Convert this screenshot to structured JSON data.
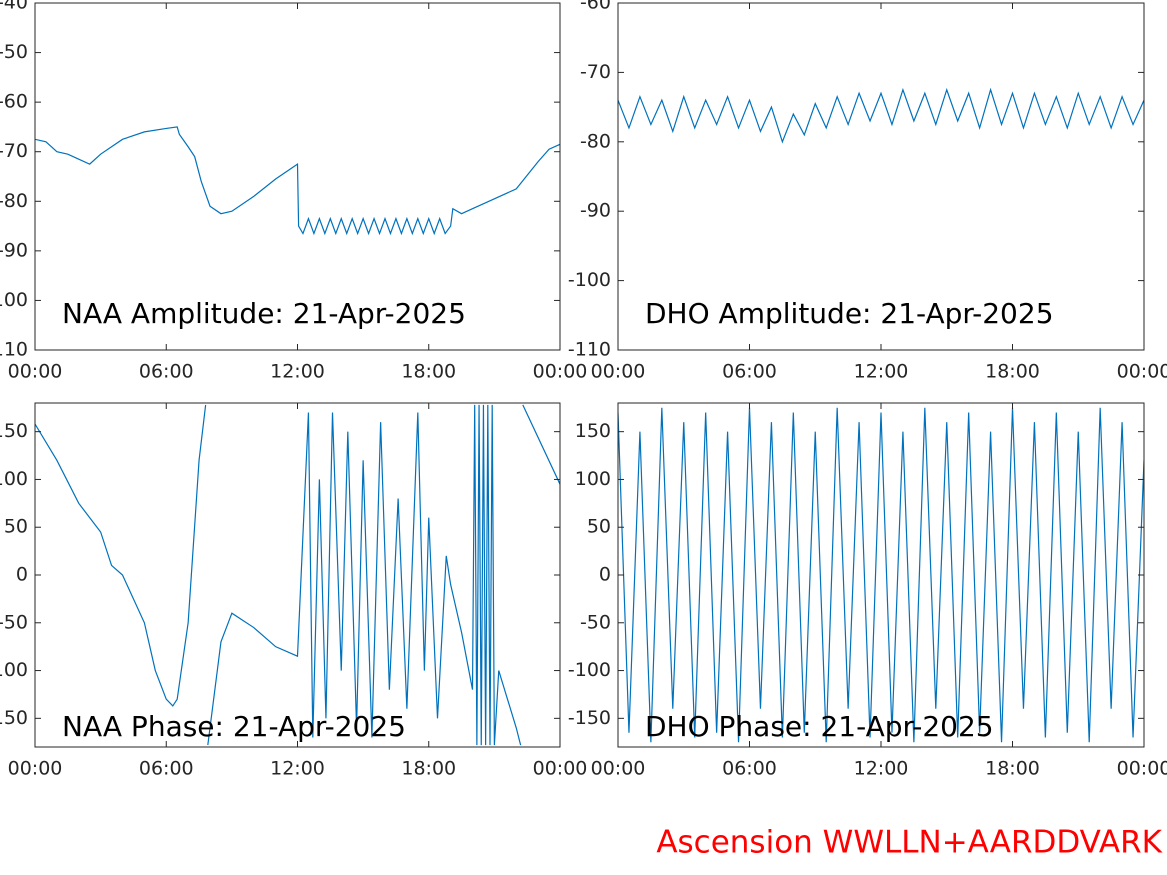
{
  "chart_data": [
    {
      "type": "line",
      "title": "NAA Amplitude: 21-Apr-2025",
      "xlim": [
        0,
        24
      ],
      "xticks": [
        {
          "value": 0,
          "label": "00:00"
        },
        {
          "value": 6,
          "label": "06:00"
        },
        {
          "value": 12,
          "label": "12:00"
        },
        {
          "value": 18,
          "label": "18:00"
        },
        {
          "value": 24,
          "label": "00:00"
        }
      ],
      "ylim": [
        -110,
        -40
      ],
      "yticks": [
        -110,
        -100,
        -90,
        -80,
        -70,
        -60,
        -50,
        -40
      ],
      "x": [
        0,
        0.5,
        1,
        1.5,
        2,
        2.5,
        3,
        3.5,
        4,
        5,
        6,
        6.5,
        6.6,
        7,
        7.3,
        7.6,
        8,
        8.5,
        9,
        10,
        11,
        12,
        12.05,
        12.25,
        12.5,
        12.75,
        13,
        13.25,
        13.5,
        13.75,
        14,
        14.25,
        14.5,
        14.75,
        15,
        15.25,
        15.5,
        15.75,
        16,
        16.25,
        16.5,
        16.75,
        17,
        17.25,
        17.5,
        17.75,
        18,
        18.25,
        18.5,
        18.75,
        19,
        19.1,
        19.5,
        20,
        21,
        22,
        23,
        23.5,
        24
      ],
      "series": [
        {
          "color": "#0072bd",
          "values": [
            -67.5,
            -68,
            -70,
            -70.5,
            -71.5,
            -72.5,
            -70.5,
            -69,
            -67.5,
            -66,
            -65.3,
            -65,
            -66.5,
            -69,
            -71,
            -76,
            -81,
            -82.5,
            -82,
            -79,
            -75.5,
            -72.5,
            -85,
            -86.5,
            -83.5,
            -86.5,
            -83.5,
            -86.5,
            -83.5,
            -86.5,
            -83.5,
            -86.5,
            -83.5,
            -86.5,
            -83.5,
            -86.5,
            -83.5,
            -86.5,
            -83.5,
            -86.5,
            -83.5,
            -86.5,
            -83.5,
            -86.5,
            -83.5,
            -86.5,
            -83.5,
            -86.5,
            -83.5,
            -86.5,
            -85,
            -81.5,
            -82.5,
            -81.5,
            -79.5,
            -77.5,
            -72,
            -69.5,
            -68.5
          ]
        }
      ]
    },
    {
      "type": "line",
      "title": "DHO Amplitude: 21-Apr-2025",
      "xlim": [
        0,
        24
      ],
      "xticks": [
        {
          "value": 0,
          "label": "00:00"
        },
        {
          "value": 6,
          "label": "06:00"
        },
        {
          "value": 12,
          "label": "12:00"
        },
        {
          "value": 18,
          "label": "18:00"
        },
        {
          "value": 24,
          "label": "00:00"
        }
      ],
      "ylim": [
        -110,
        -60
      ],
      "yticks": [
        -110,
        -100,
        -90,
        -80,
        -70,
        -60
      ],
      "x": [
        0,
        0.5,
        1,
        1.5,
        2,
        2.5,
        3,
        3.5,
        4,
        4.5,
        5,
        5.5,
        6,
        6.5,
        7,
        7.5,
        8,
        8.5,
        9,
        9.5,
        10,
        10.5,
        11,
        11.5,
        12,
        12.5,
        13,
        13.5,
        14,
        14.5,
        15,
        15.5,
        16,
        16.5,
        17,
        17.5,
        18,
        18.5,
        19,
        19.5,
        20,
        20.5,
        21,
        21.5,
        22,
        22.5,
        23,
        23.5,
        24
      ],
      "series": [
        {
          "color": "#0072bd",
          "values": [
            -74,
            -78,
            -73.5,
            -77.5,
            -74,
            -78.5,
            -73.5,
            -78,
            -74,
            -77.5,
            -73.5,
            -78,
            -74,
            -78.5,
            -75,
            -80,
            -76,
            -79,
            -74.5,
            -78,
            -73.5,
            -77.5,
            -73,
            -77,
            -73,
            -77.5,
            -72.5,
            -77,
            -73,
            -77.5,
            -72.5,
            -77,
            -73,
            -78,
            -72.5,
            -77.5,
            -73,
            -78,
            -73,
            -77.5,
            -73.5,
            -78,
            -73,
            -77.5,
            -73.5,
            -78,
            -73.5,
            -77.5,
            -74
          ]
        }
      ]
    },
    {
      "type": "line",
      "title": "NAA Phase: 21-Apr-2025",
      "xlim": [
        0,
        24
      ],
      "xticks": [
        {
          "value": 0,
          "label": "00:00"
        },
        {
          "value": 6,
          "label": "06:00"
        },
        {
          "value": 12,
          "label": "12:00"
        },
        {
          "value": 18,
          "label": "18:00"
        },
        {
          "value": 24,
          "label": "00:00"
        }
      ],
      "ylim": [
        -180,
        180
      ],
      "yticks": [
        -150,
        -100,
        -50,
        0,
        50,
        100,
        150
      ],
      "x": [
        0,
        1,
        2,
        3,
        3.5,
        4,
        5,
        5.5,
        6,
        6.3,
        6.5,
        7,
        7.5,
        7.8,
        7.85,
        7.9,
        8.5,
        9,
        10,
        11,
        12,
        12.5,
        12.7,
        13,
        13.3,
        13.6,
        14,
        14.3,
        14.7,
        15,
        15.4,
        15.8,
        16.2,
        16.6,
        17,
        17.5,
        17.8,
        18,
        18.4,
        18.8,
        19,
        19.5,
        20,
        20.1,
        20.2,
        20.3,
        20.4,
        20.5,
        20.6,
        20.7,
        20.8,
        20.9,
        21,
        21.2,
        22,
        22.2,
        22.25,
        22.3,
        24
      ],
      "series": [
        {
          "color": "#0072bd",
          "values": [
            158,
            120,
            75,
            45,
            10,
            0,
            -50,
            -100,
            -130,
            -137,
            -130,
            -50,
            120,
            178,
            null,
            -178,
            -70,
            -40,
            -55,
            -75,
            -85,
            170,
            -170,
            100,
            -150,
            170,
            -100,
            150,
            -160,
            120,
            -170,
            160,
            -120,
            80,
            -140,
            170,
            -100,
            60,
            -150,
            20,
            -10,
            -60,
            -120,
            178,
            -178,
            178,
            -178,
            178,
            -178,
            178,
            -178,
            178,
            -178,
            -100,
            -160,
            -178,
            null,
            178,
            95
          ]
        }
      ]
    },
    {
      "type": "line",
      "title": "DHO Phase: 21-Apr-2025",
      "xlim": [
        0,
        24
      ],
      "xticks": [
        {
          "value": 0,
          "label": "00:00"
        },
        {
          "value": 6,
          "label": "06:00"
        },
        {
          "value": 12,
          "label": "12:00"
        },
        {
          "value": 18,
          "label": "18:00"
        },
        {
          "value": 24,
          "label": "00:00"
        }
      ],
      "ylim": [
        -180,
        180
      ],
      "yticks": [
        -150,
        -100,
        -50,
        0,
        50,
        100,
        150
      ],
      "x": [
        0,
        0.5,
        1,
        1.5,
        2,
        2.5,
        3,
        3.5,
        4,
        4.5,
        5,
        5.5,
        6,
        6.5,
        7,
        7.5,
        8,
        8.5,
        9,
        9.5,
        10,
        10.5,
        11,
        11.5,
        12,
        12.5,
        13,
        13.5,
        14,
        14.5,
        15,
        15.5,
        16,
        16.5,
        17,
        17.5,
        18,
        18.5,
        19,
        19.5,
        20,
        20.5,
        21,
        21.5,
        22,
        22.5,
        23,
        23.5,
        24
      ],
      "series": [
        {
          "color": "#0072bd",
          "values": [
            170,
            -165,
            150,
            -175,
            175,
            -140,
            160,
            -170,
            170,
            -165,
            150,
            -175,
            175,
            -140,
            160,
            -170,
            170,
            -165,
            150,
            -175,
            175,
            -140,
            160,
            -170,
            170,
            -165,
            150,
            -175,
            175,
            -140,
            160,
            -170,
            170,
            -165,
            150,
            -175,
            175,
            -140,
            160,
            -170,
            170,
            -165,
            150,
            -175,
            175,
            -140,
            160,
            -170,
            120
          ]
        }
      ]
    }
  ],
  "footer": "Ascension WWLLN+AARDDVARK"
}
